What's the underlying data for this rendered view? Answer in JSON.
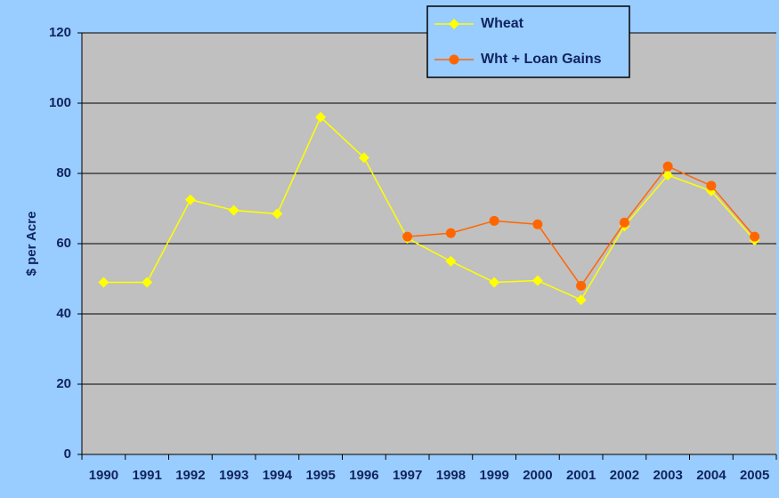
{
  "chart_data": {
    "type": "line",
    "y_label": "$ per Acre",
    "categories": [
      "1990",
      "1991",
      "1992",
      "1993",
      "1994",
      "1995",
      "1996",
      "1997",
      "1998",
      "1999",
      "2000",
      "2001",
      "2002",
      "2003",
      "2004",
      "2005"
    ],
    "series": [
      {
        "name": "Wheat",
        "color": "#ffff00",
        "marker": "diamond",
        "values": [
          49,
          49,
          72.5,
          69.5,
          68.5,
          96,
          84.5,
          61.5,
          55,
          49,
          49.5,
          44,
          65,
          79.5,
          75,
          61
        ]
      },
      {
        "name": "Wht + Loan Gains",
        "color": "#ff6600",
        "marker": "circle",
        "values": [
          null,
          null,
          null,
          null,
          null,
          null,
          null,
          62,
          63,
          66.5,
          65.5,
          48,
          66,
          82,
          76.5,
          62
        ]
      }
    ],
    "ylim": [
      0,
      120
    ],
    "yticks": [
      0,
      20,
      40,
      60,
      80,
      100,
      120
    ],
    "grid": true,
    "legend": "top-right"
  }
}
